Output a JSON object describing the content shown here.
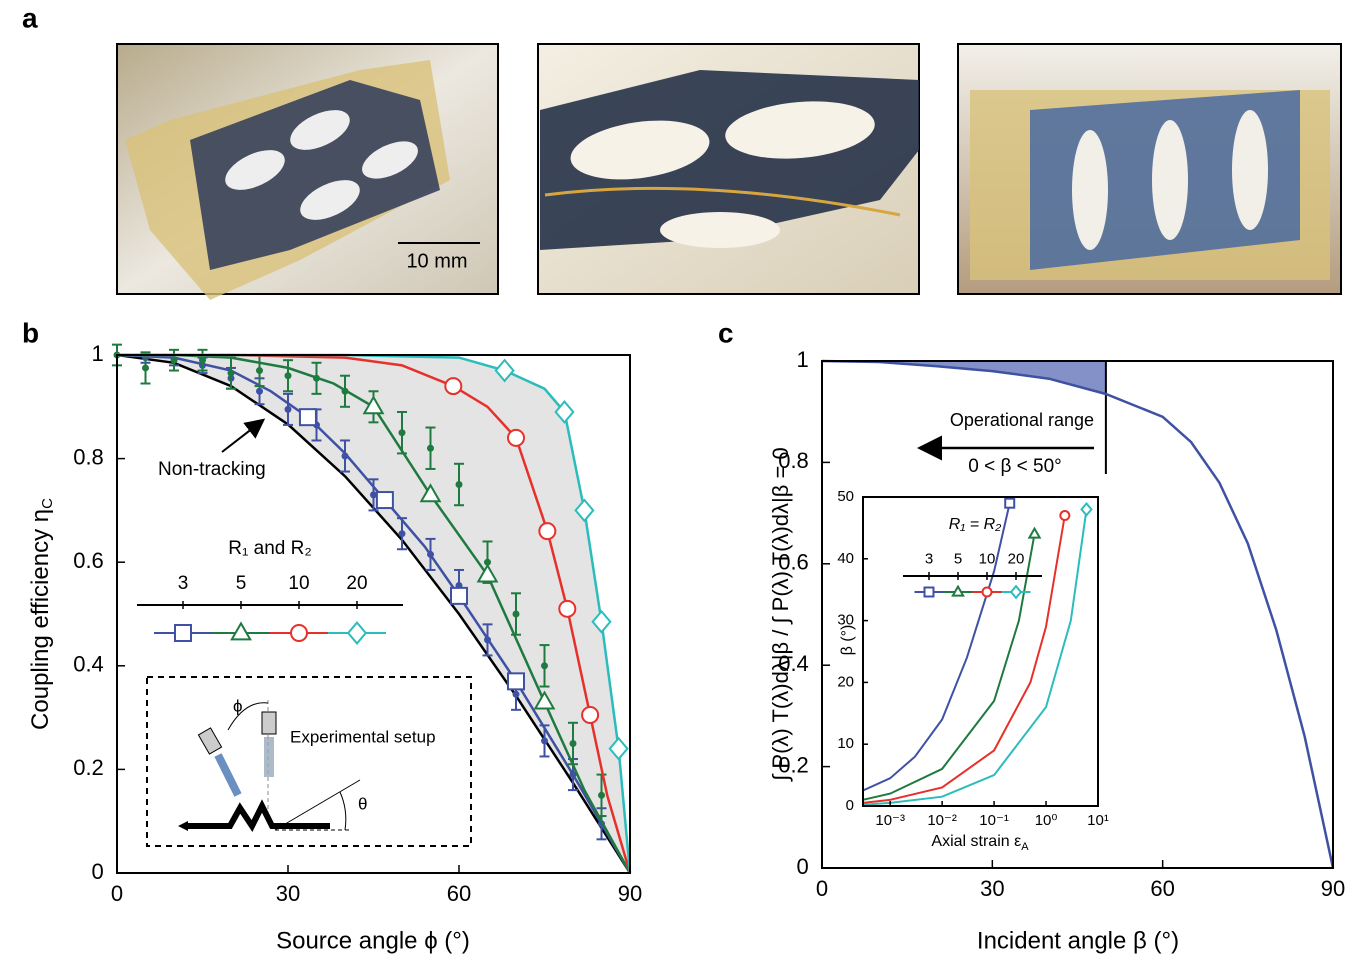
{
  "panel_labels": [
    "a",
    "b",
    "c"
  ],
  "photos": {
    "scale_bar": "10 mm"
  },
  "chart_data": [
    {
      "type": "line",
      "xlim": [
        0,
        90
      ],
      "ylim": [
        0,
        1
      ],
      "xticks": [
        0,
        30,
        60,
        90
      ],
      "yticks": [
        0,
        0.2,
        0.4,
        0.6,
        0.8,
        1
      ],
      "x_label": "Source angle ϕ (°)",
      "y_label": "Coupling efficiency η",
      "y_label_sub": "C",
      "legend_title": "R₁ and R₂",
      "annotations": {
        "setup": "Experimental setup",
        "phi": "ϕ",
        "theta": "θ"
      },
      "series": [
        {
          "name": "Non-tracking",
          "color": "#000000",
          "x": [
            0,
            10,
            20,
            30,
            40,
            50,
            60,
            70,
            80,
            90
          ],
          "values": [
            1,
            0.985,
            0.94,
            0.866,
            0.766,
            0.643,
            0.5,
            0.342,
            0.174,
            0
          ]
        },
        {
          "name": "3",
          "color": "#3f51a3",
          "marker": "square",
          "x": [
            0,
            10,
            20,
            27,
            33.5,
            40,
            47,
            54,
            60,
            70,
            80,
            90
          ],
          "values": [
            1,
            0.995,
            0.97,
            0.93,
            0.88,
            0.81,
            0.72,
            0.63,
            0.535,
            0.37,
            0.19,
            0
          ],
          "marker_x": [
            33.5,
            47,
            60,
            70
          ],
          "marker_values": [
            0.88,
            0.72,
            0.535,
            0.37
          ],
          "measured_x": [
            5,
            10,
            15,
            20,
            25,
            30,
            35,
            40,
            45,
            50,
            55,
            60,
            65,
            70,
            75,
            80,
            85
          ],
          "measured_values": [
            0.995,
            0.99,
            0.98,
            0.955,
            0.93,
            0.895,
            0.865,
            0.805,
            0.73,
            0.655,
            0.615,
            0.555,
            0.45,
            0.345,
            0.255,
            0.19,
            0.095
          ],
          "measured_errors": [
            0.01,
            0.01,
            0.015,
            0.02,
            0.025,
            0.03,
            0.03,
            0.03,
            0.03,
            0.03,
            0.03,
            0.03,
            0.03,
            0.03,
            0.03,
            0.03,
            0.03
          ]
        },
        {
          "name": "5",
          "color": "#1f7a3f",
          "marker": "triangle",
          "x": [
            0,
            10,
            20,
            30,
            38,
            45,
            55,
            65,
            75,
            82,
            90
          ],
          "values": [
            1,
            1,
            0.995,
            0.975,
            0.945,
            0.9,
            0.73,
            0.575,
            0.33,
            0.16,
            0
          ],
          "marker_x": [
            45,
            55,
            65,
            75
          ],
          "marker_values": [
            0.9,
            0.73,
            0.575,
            0.33
          ],
          "measured_x": [
            0,
            5,
            10,
            15,
            20,
            25,
            30,
            35,
            40,
            45,
            50,
            55,
            60,
            65,
            70,
            75,
            80,
            85
          ],
          "measured_values": [
            1,
            0.975,
            0.99,
            0.99,
            0.965,
            0.97,
            0.96,
            0.955,
            0.93,
            0.9,
            0.85,
            0.82,
            0.75,
            0.6,
            0.5,
            0.4,
            0.25,
            0.15
          ],
          "measured_errors": [
            0.02,
            0.03,
            0.02,
            0.02,
            0.03,
            0.03,
            0.03,
            0.03,
            0.03,
            0.03,
            0.04,
            0.04,
            0.04,
            0.04,
            0.04,
            0.04,
            0.04,
            0.04
          ]
        },
        {
          "name": "10",
          "color": "#e8302a",
          "marker": "circle",
          "x": [
            0,
            20,
            40,
            50,
            59,
            65,
            70,
            75.5,
            79,
            83,
            86,
            90
          ],
          "values": [
            1,
            1,
            0.995,
            0.98,
            0.94,
            0.9,
            0.84,
            0.66,
            0.51,
            0.305,
            0.15,
            0
          ],
          "marker_x": [
            59,
            70,
            75.5,
            79,
            83
          ],
          "marker_values": [
            0.94,
            0.84,
            0.66,
            0.51,
            0.305
          ]
        },
        {
          "name": "20",
          "color": "#2bbcbc",
          "marker": "diamond",
          "x": [
            0,
            40,
            60,
            68,
            75,
            78.5,
            82,
            85,
            88,
            90
          ],
          "values": [
            1,
            1,
            0.995,
            0.97,
            0.935,
            0.89,
            0.7,
            0.485,
            0.24,
            0
          ],
          "marker_x": [
            68,
            78.5,
            82,
            85,
            88
          ],
          "marker_values": [
            0.97,
            0.89,
            0.7,
            0.485,
            0.24
          ]
        }
      ]
    },
    {
      "type": "line",
      "xlim": [
        0,
        90
      ],
      "ylim": [
        0,
        1
      ],
      "xticks": [
        0,
        30,
        60,
        90
      ],
      "yticks": [
        0,
        0.2,
        0.4,
        0.6,
        0.8,
        1
      ],
      "x_label": "Incident angle β (°)",
      "y_label": "∫ P(λ) T(λ)dλ|β / ∫ P(λ) T(λ)dλ|β = 0",
      "operational_range": [
        0,
        50
      ],
      "annotations": {
        "range": "Operational range",
        "range_expr": "0 < β < 50°"
      },
      "series": [
        {
          "color": "#3f51a3",
          "x": [
            0,
            10,
            20,
            30,
            40,
            50,
            60,
            65,
            70,
            75,
            80,
            85,
            90
          ],
          "values": [
            1,
            0.998,
            0.99,
            0.98,
            0.965,
            0.935,
            0.89,
            0.84,
            0.76,
            0.64,
            0.47,
            0.26,
            0
          ]
        }
      ]
    },
    {
      "type": "line",
      "log_x": true,
      "xlim": [
        0.0003,
        10
      ],
      "ylim": [
        0,
        50
      ],
      "xticks": [
        {
          "value": 0.001,
          "label": "10⁻³"
        },
        {
          "value": 0.01,
          "label": "10⁻²"
        },
        {
          "value": 0.1,
          "label": "10⁻¹"
        },
        {
          "value": 1,
          "label": "10⁰"
        },
        {
          "value": 10,
          "label": "10¹"
        }
      ],
      "yticks": [
        0,
        10,
        20,
        30,
        40,
        50
      ],
      "x_label": "Axial strain ε",
      "x_label_sub": "A",
      "y_label": "β (°)",
      "legend_title": "R₁ = R₂",
      "series": [
        {
          "name": "3",
          "color": "#3f51a3",
          "marker": "square",
          "x": [
            0.0003,
            0.001,
            0.003,
            0.01,
            0.03,
            0.1,
            0.2
          ],
          "values": [
            2.5,
            4.5,
            8,
            14,
            24,
            38,
            49
          ]
        },
        {
          "name": "5",
          "color": "#1f7a3f",
          "marker": "triangle",
          "x": [
            0.0003,
            0.001,
            0.01,
            0.1,
            0.3,
            0.6
          ],
          "values": [
            1,
            2,
            6,
            17,
            30,
            44
          ]
        },
        {
          "name": "10",
          "color": "#e8302a",
          "marker": "circle",
          "x": [
            0.0003,
            0.001,
            0.01,
            0.1,
            0.5,
            1,
            2.3
          ],
          "values": [
            0.5,
            1,
            3,
            9,
            20,
            29,
            47
          ]
        },
        {
          "name": "20",
          "color": "#2bbcbc",
          "marker": "diamond",
          "x": [
            0.0003,
            0.001,
            0.01,
            0.1,
            1,
            3,
            6
          ],
          "values": [
            0.2,
            0.5,
            1.5,
            5,
            16,
            30,
            48
          ]
        }
      ]
    }
  ]
}
